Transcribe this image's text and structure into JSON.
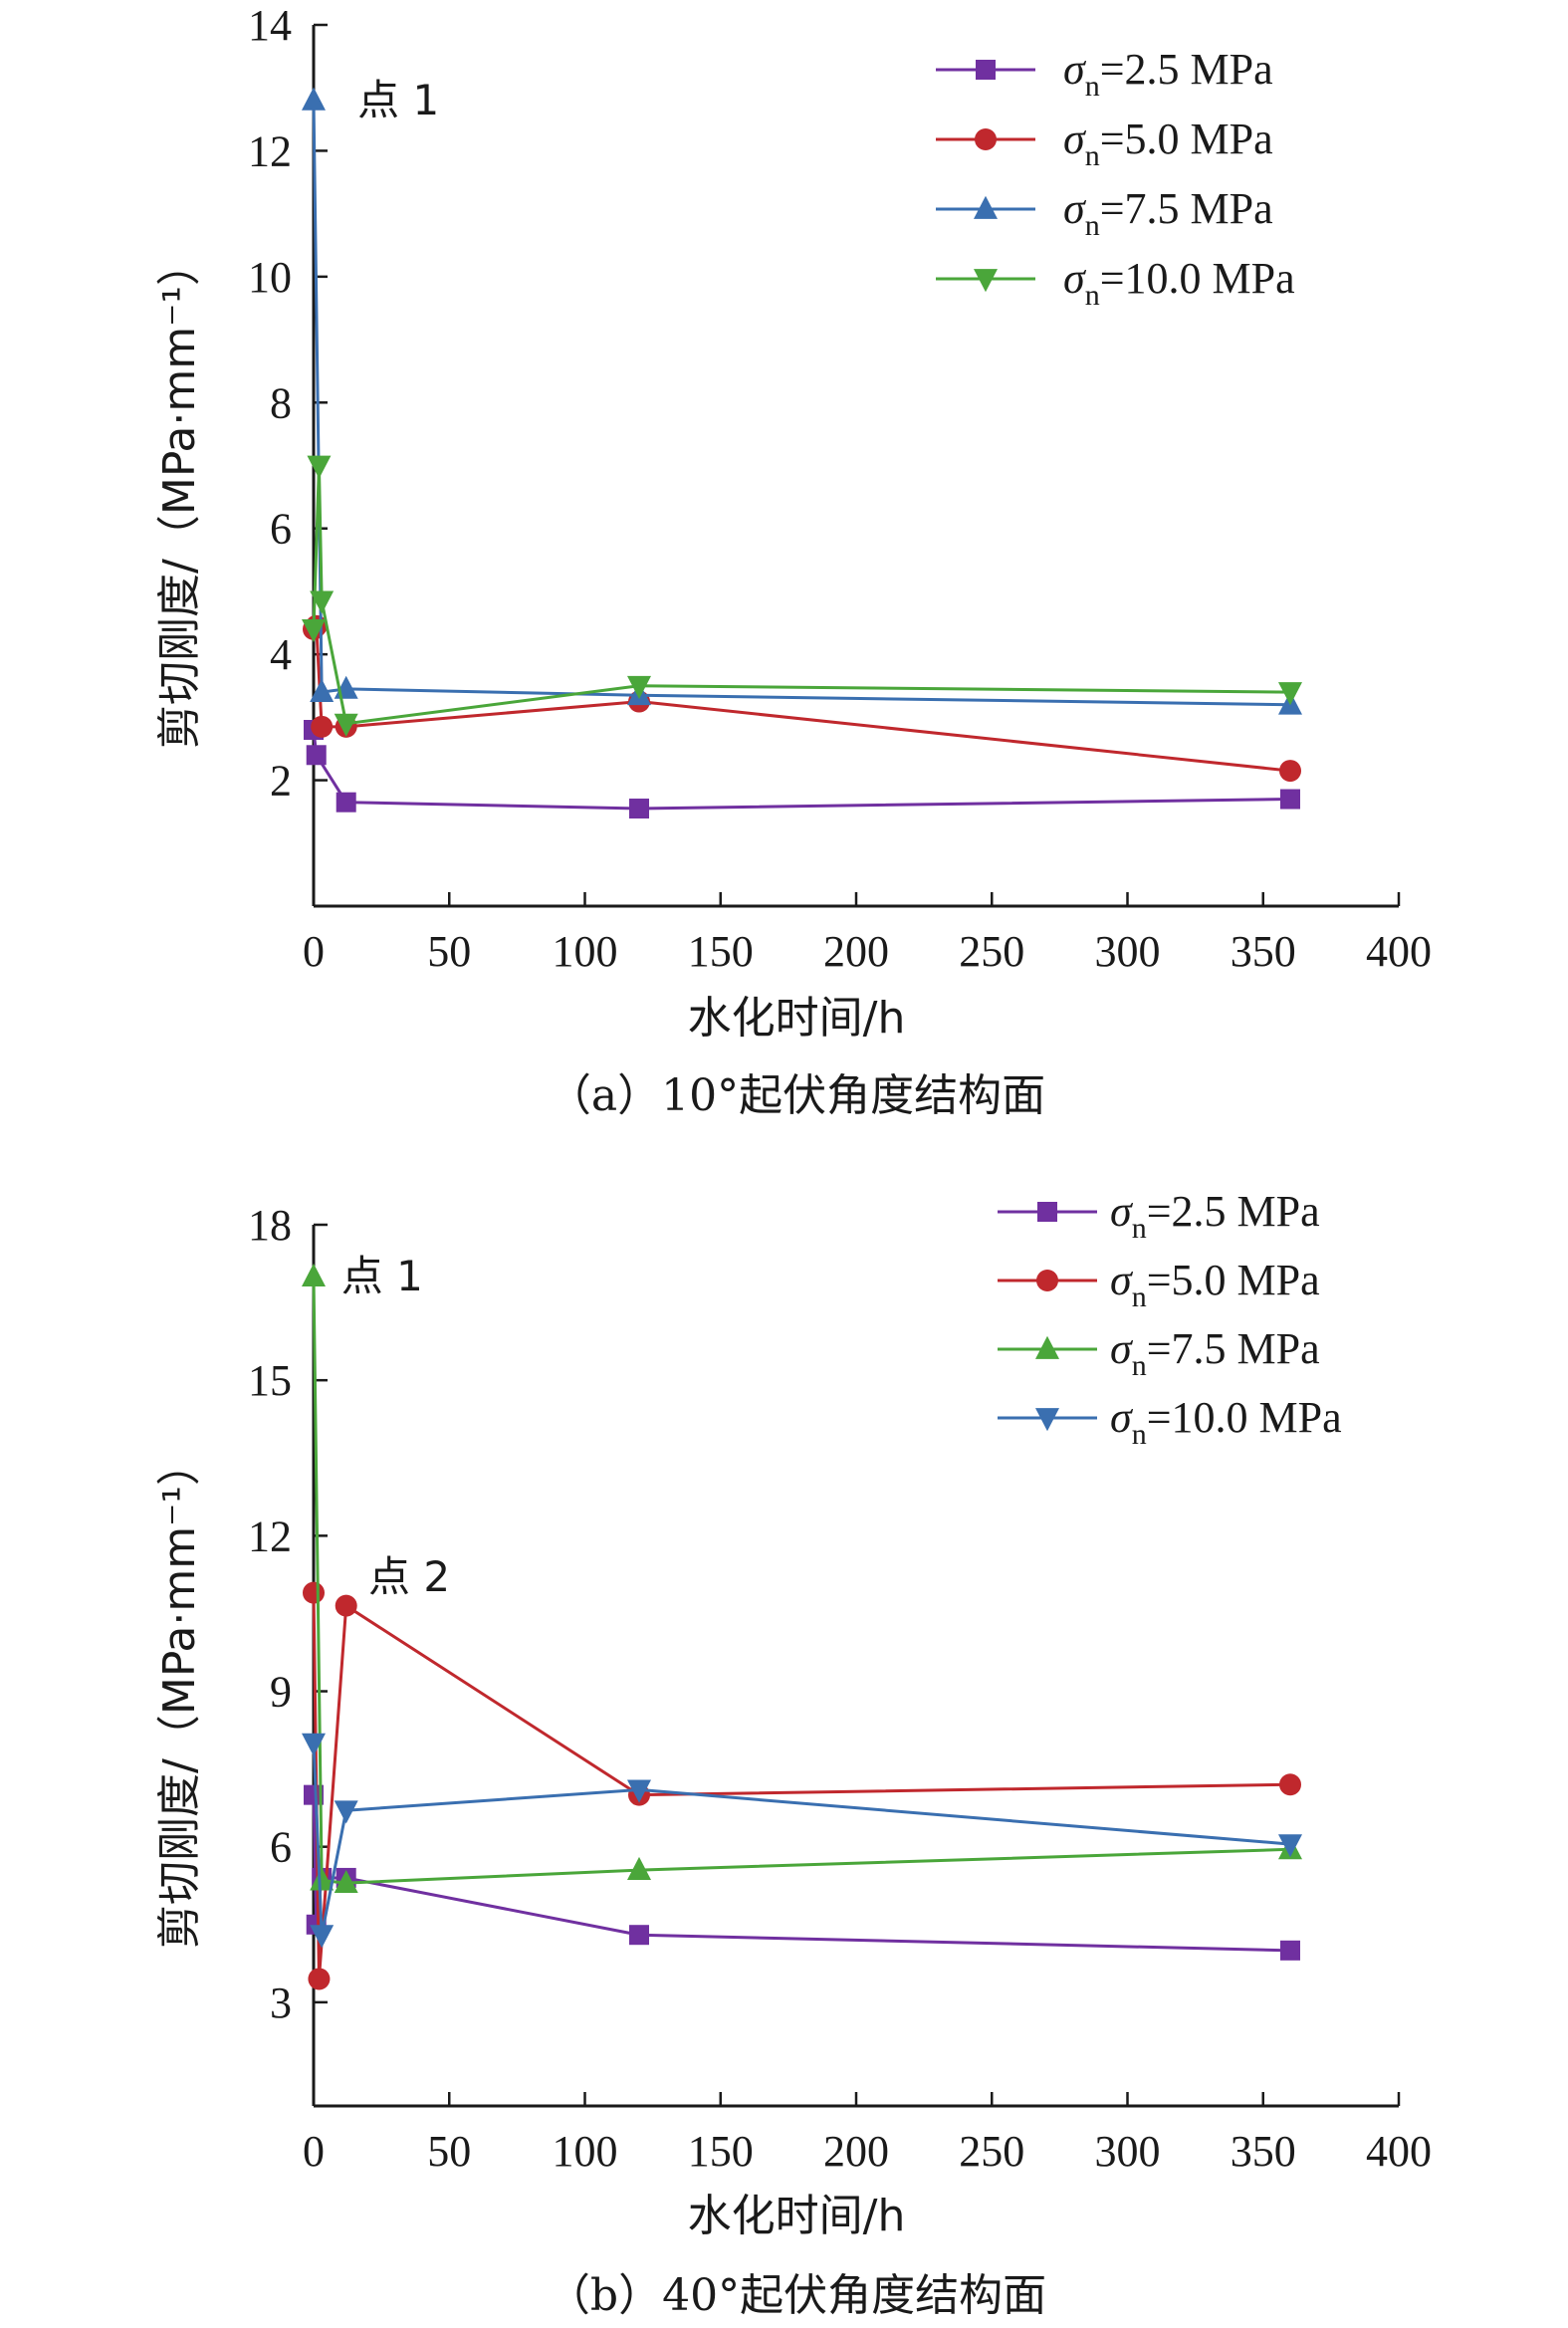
{
  "chart_data": [
    {
      "type": "line",
      "caption": "（a）10°起伏角度结构面",
      "xlabel": "水化时间/h",
      "ylabel": "剪切刚度/（MPa·mm⁻¹）",
      "xlim": [
        0,
        400
      ],
      "ylim": [
        0,
        14
      ],
      "xticks": [
        0,
        50,
        100,
        150,
        200,
        250,
        300,
        350,
        400
      ],
      "yticks": [
        2,
        4,
        6,
        8,
        10,
        12,
        14
      ],
      "legend_position": "top-right",
      "grid": false,
      "series": [
        {
          "name": "σn=2.5 MPa",
          "sym": "σ",
          "sub": "n",
          "rest": "=2.5 MPa",
          "color": "#7030a0",
          "marker": "square",
          "x": [
            0,
            1,
            12,
            120,
            360
          ],
          "y": [
            2.8,
            2.4,
            1.65,
            1.55,
            1.7
          ]
        },
        {
          "name": "σn=5.0 MPa",
          "sym": "σ",
          "sub": "n",
          "rest": "=5.0 MPa",
          "color": "#c0282d",
          "marker": "circle",
          "x": [
            0,
            1,
            3,
            12,
            120,
            360
          ],
          "y": [
            4.4,
            4.45,
            2.85,
            2.85,
            3.25,
            2.15
          ]
        },
        {
          "name": "σn=7.5 MPa",
          "sym": "σ",
          "sub": "n",
          "rest": "=7.5 MPa",
          "color": "#3a6fb0",
          "marker": "triangle-up",
          "x": [
            0,
            3,
            12,
            120,
            360
          ],
          "y": [
            12.8,
            3.4,
            3.45,
            3.35,
            3.2
          ]
        },
        {
          "name": "σn=10.0 MPa",
          "sym": "σ",
          "sub": "n",
          "rest": "=10.0 MPa",
          "color": "#4aa63a",
          "marker": "triangle-down",
          "x": [
            0,
            2,
            3,
            12,
            120,
            360
          ],
          "y": [
            4.4,
            7.0,
            4.85,
            2.9,
            3.5,
            3.4
          ]
        }
      ],
      "annotations": [
        {
          "text": "点 1",
          "x": 14,
          "y": 12.8
        }
      ]
    },
    {
      "type": "line",
      "caption": "（b）40°起伏角度结构面",
      "xlabel": "水化时间/h",
      "ylabel": "剪切刚度/（MPa·mm⁻¹）",
      "xlim": [
        0,
        400
      ],
      "ylim": [
        1,
        18
      ],
      "xticks": [
        0,
        50,
        100,
        150,
        200,
        250,
        300,
        350,
        400
      ],
      "yticks": [
        3,
        6,
        9,
        12,
        15,
        18
      ],
      "legend_position": "top-right",
      "grid": false,
      "series": [
        {
          "name": "σn=2.5 MPa",
          "sym": "σ",
          "sub": "n",
          "rest": "=2.5 MPa",
          "color": "#7030a0",
          "marker": "square",
          "x": [
            0,
            1,
            3,
            12,
            120,
            360
          ],
          "y": [
            7.0,
            4.5,
            5.4,
            5.4,
            4.3,
            4.0
          ]
        },
        {
          "name": "σn=5.0 MPa",
          "sym": "σ",
          "sub": "n",
          "rest": "=5.0 MPa",
          "color": "#c0282d",
          "marker": "circle",
          "x": [
            0,
            2,
            12,
            120,
            360
          ],
          "y": [
            10.9,
            3.45,
            10.65,
            7.0,
            7.2
          ]
        },
        {
          "name": "σn=7.5 MPa",
          "sym": "σ",
          "sub": "n",
          "rest": "=7.5 MPa",
          "color": "#4aa63a",
          "marker": "triangle-up",
          "x": [
            0,
            3,
            12,
            120,
            360
          ],
          "y": [
            17.0,
            5.35,
            5.3,
            5.55,
            5.95
          ]
        },
        {
          "name": "σn=10.0 MPa",
          "sym": "σ",
          "sub": "n",
          "rest": "=10.0 MPa",
          "color": "#3a6fb0",
          "marker": "triangle-down",
          "x": [
            0,
            3,
            12,
            120,
            360
          ],
          "y": [
            8.0,
            4.3,
            6.7,
            7.1,
            6.05
          ]
        }
      ],
      "annotations": [
        {
          "text": "点 1",
          "x": 8,
          "y": 17.0
        },
        {
          "text": "点 2",
          "x": 18,
          "y": 11.2
        }
      ]
    }
  ]
}
